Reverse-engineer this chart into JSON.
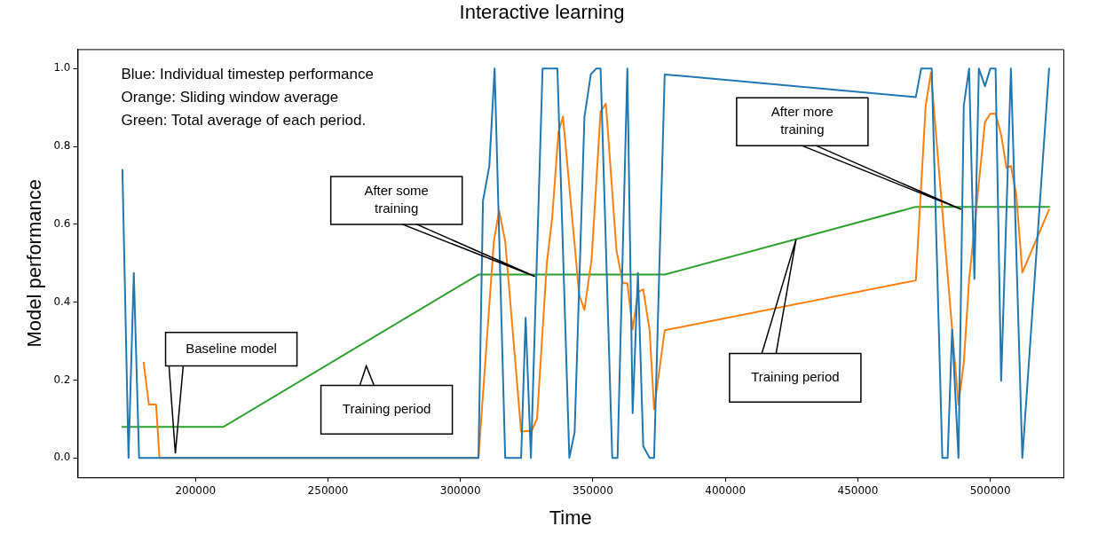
{
  "chart_data": {
    "type": "line",
    "title": "Interactive learning",
    "xlabel": "Time",
    "ylabel": "Model performance",
    "xlim": [
      155500,
      527600
    ],
    "xticks": [
      200000,
      250000,
      300000,
      350000,
      400000,
      450000,
      500000
    ],
    "ylim": [
      -0.05,
      1.05
    ],
    "yticks": [
      {
        "value": 0,
        "label": "0.0"
      },
      {
        "value": 0.2,
        "label": "0.2"
      },
      {
        "value": 0.4,
        "label": "0.4"
      },
      {
        "value": 0.6,
        "label": "0.6"
      },
      {
        "value": 0.8,
        "label": "0.8"
      },
      {
        "value": 1,
        "label": "1.0"
      }
    ],
    "grid": false,
    "legend": false,
    "marker": "none",
    "line_style": "solid",
    "series": [
      {
        "color": "#1f77b4",
        "x": [
          172400,
          174700,
          176700,
          178700,
          306800,
          308500,
          310900,
          312900,
          316900,
          322900,
          324600,
          326600,
          331000,
          336600,
          341100,
          343100,
          346800,
          349200,
          351200,
          352900,
          357300,
          359300,
          363000,
          365000,
          367000,
          369000,
          371400,
          373100,
          377100,
          471900,
          473900,
          477900,
          481900,
          483900,
          485600,
          488000,
          490000,
          492000,
          494000,
          495700,
          498000,
          500000,
          502000,
          504100,
          507800,
          512100,
          522200
        ],
        "values": [
          0.74,
          0,
          0.475,
          0,
          0,
          0.66,
          0.75,
          1.0,
          0,
          0,
          0.36,
          0,
          1.0,
          1.0,
          0,
          0.066,
          0.875,
          0.985,
          1.0,
          1.0,
          0,
          0,
          1.0,
          0.115,
          0.475,
          0.03,
          0,
          0,
          0.985,
          0.927,
          1.0,
          1.0,
          0,
          0,
          0.33,
          0,
          0.905,
          1.0,
          0.46,
          1.0,
          0.955,
          1.0,
          1.0,
          0.198,
          1.0,
          0,
          1.0
        ]
      },
      {
        "color": "#ff7f0e",
        "x": [
          180400,
          182400,
          185100,
          186400,
          306800,
          312600,
          314600,
          316900,
          322900,
          326900,
          328900,
          332600,
          334600,
          337000,
          338700,
          344800,
          346800,
          349500,
          352900,
          354900,
          358900,
          361300,
          363000,
          365000,
          367000,
          369000,
          371400,
          373100,
          377100,
          471900,
          475600,
          477600,
          485600,
          488000,
          490000,
          492000,
          498000,
          500000,
          502000,
          504100,
          506100,
          507800,
          509800,
          512100,
          522200
        ],
        "values": [
          0.245,
          0.137,
          0.137,
          0,
          0,
          0.556,
          0.635,
          0.556,
          0.068,
          0.07,
          0.1,
          0.5,
          0.615,
          0.836,
          0.877,
          0.42,
          0.38,
          0.51,
          0.89,
          0.91,
          0.533,
          0.449,
          0.449,
          0.33,
          0.426,
          0.433,
          0.328,
          0.125,
          0.328,
          0.456,
          0.904,
          0.99,
          0.33,
          0.137,
          0.244,
          0.456,
          0.863,
          0.884,
          0.884,
          0.83,
          0.745,
          0.75,
          0.677,
          0.476,
          0.638
        ]
      },
      {
        "color": "#2ca02c",
        "x": [
          172400,
          210600,
          306800,
          377100,
          471900,
          522200
        ],
        "values": [
          0.08,
          0.08,
          0.471,
          0.471,
          0.645,
          0.645
        ]
      }
    ],
    "annotations": [
      "Blue: Individual timestep performance",
      "Orange: Sliding window average",
      "Green: Total average of each period.",
      "Baseline model",
      "Training period",
      "After some training",
      "Training period",
      "After more training"
    ]
  }
}
